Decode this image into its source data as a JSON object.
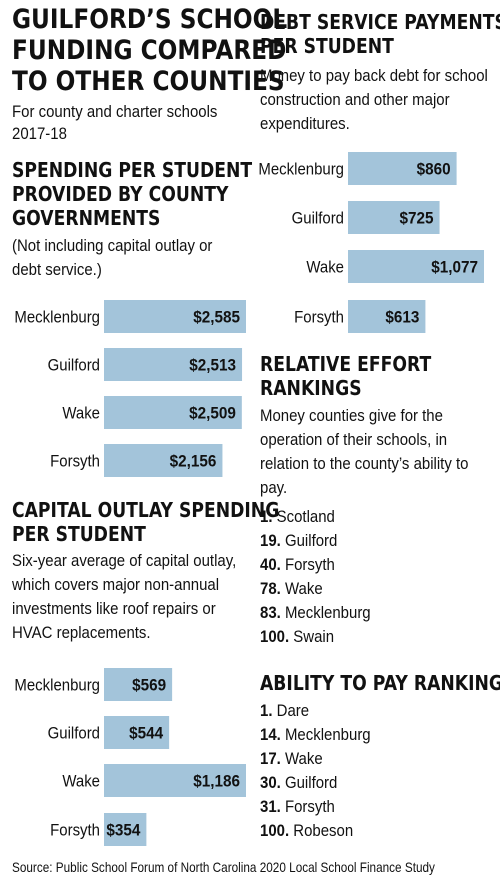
{
  "main": {
    "title_lines": [
      "GUILFORD’S SCHOOL",
      "FUNDING COMPARED",
      "TO OTHER COUNTIES"
    ],
    "subtitle_lines": [
      "For county and charter schools",
      "2017-18"
    ]
  },
  "colors": {
    "bar": "#a3c4da",
    "bar_stroke": "#7ea8c4",
    "text": "#111111"
  },
  "chart_data": [
    {
      "type": "bar",
      "orientation": "horizontal",
      "title": "SPENDING PER STUDENT PROVIDED BY COUNTY GOVERNMENTS",
      "title_lines": [
        "SPENDING PER STUDENT",
        "PROVIDED BY COUNTY",
        "GOVERNMENTS"
      ],
      "subtitle_lines": [
        "(Not including capital outlay or",
        "debt service.)"
      ],
      "categories": [
        "Mecklenburg",
        "Guilford",
        "Wake",
        "Forsyth"
      ],
      "values": [
        2585,
        2513,
        2509,
        2156
      ],
      "labels": [
        "$2,585",
        "$2,513",
        "$2,509",
        "$2,156"
      ],
      "xlim": [
        0,
        2585
      ]
    },
    {
      "type": "bar",
      "orientation": "horizontal",
      "title": "CAPITAL OUTLAY SPENDING PER STUDENT",
      "title_lines": [
        "CAPITAL OUTLAY SPENDING",
        "PER STUDENT"
      ],
      "subtitle_lines": [
        "Six-year average of capital outlay,",
        "which covers major non-annual",
        "investments like roof repairs or",
        "HVAC replacements."
      ],
      "categories": [
        "Mecklenburg",
        "Guilford",
        "Wake",
        "Forsyth"
      ],
      "values": [
        569,
        544,
        1186,
        354
      ],
      "labels": [
        "$569",
        "$544",
        "$1,186",
        "$354"
      ],
      "xlim": [
        0,
        1186
      ]
    },
    {
      "type": "bar",
      "orientation": "horizontal",
      "title": "DEBT SERVICE PAYMENTS PER STUDENT",
      "title_lines": [
        "DEBT SERVICE PAYMENTS",
        "PER STUDENT"
      ],
      "subtitle_lines": [
        "Money to pay back debt for school",
        "construction and other major",
        "expenditures."
      ],
      "categories": [
        "Mecklenburg",
        "Guilford",
        "Wake",
        "Forsyth"
      ],
      "values": [
        860,
        725,
        1077,
        613
      ],
      "labels": [
        "$860",
        "$725",
        "$1,077",
        "$613"
      ],
      "xlim": [
        0,
        1077
      ]
    }
  ],
  "relative_effort": {
    "title_lines": [
      "RELATIVE EFFORT",
      "RANKINGS"
    ],
    "desc_lines": [
      "Money counties give for the",
      "operation of their schools, in",
      "relation to the county’s ability to",
      "pay."
    ],
    "items": [
      {
        "rank": "1.",
        "name": "Scotland"
      },
      {
        "rank": "19.",
        "name": "Guilford"
      },
      {
        "rank": "40.",
        "name": "Forsyth"
      },
      {
        "rank": "78.",
        "name": "Wake"
      },
      {
        "rank": "83.",
        "name": "Mecklenburg"
      },
      {
        "rank": "100.",
        "name": "Swain"
      }
    ]
  },
  "ability_to_pay": {
    "title": "ABILITY TO PAY RANKINGS",
    "items": [
      {
        "rank": "1.",
        "name": "Dare"
      },
      {
        "rank": "14.",
        "name": "Mecklenburg"
      },
      {
        "rank": "17.",
        "name": "Wake"
      },
      {
        "rank": "30.",
        "name": "Guilford"
      },
      {
        "rank": "31.",
        "name": "Forsyth"
      },
      {
        "rank": "100.",
        "name": "Robeson"
      }
    ]
  },
  "footer": "Source: Public School Forum of North Carolina 2020 Local School Finance Study"
}
